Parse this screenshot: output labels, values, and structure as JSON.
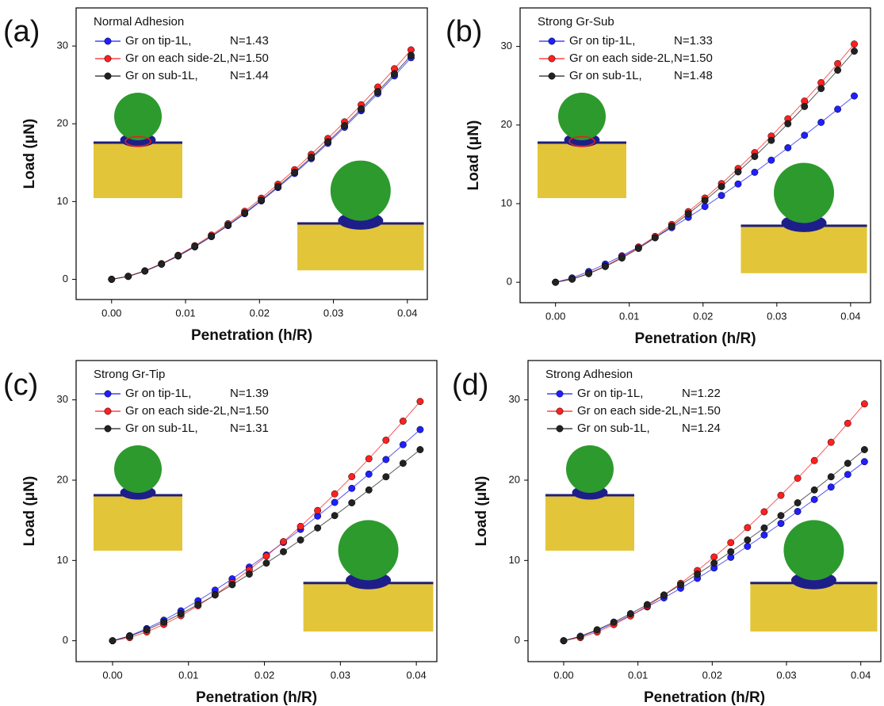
{
  "chart_data": [
    {
      "type": "line",
      "panel_label": "(a)",
      "title": "Normal Adhesion",
      "x_label": "Penetration (h/R)",
      "y_label": "Load (μN)",
      "x": [
        0,
        0.00225,
        0.0045,
        0.00675,
        0.009,
        0.01125,
        0.0135,
        0.01575,
        0.018,
        0.02025,
        0.0225,
        0.02475,
        0.027,
        0.02925,
        0.0315,
        0.03375,
        0.036,
        0.03825,
        0.0405
      ],
      "series": [
        {
          "name": "Gr on tip-1L,",
          "fit_label": "N=1.43",
          "color": "#1f1fff",
          "values": [
            0,
            0.37,
            1.05,
            1.94,
            2.99,
            4.17,
            5.49,
            6.91,
            8.44,
            10.08,
            11.8,
            13.61,
            15.51,
            17.49,
            19.55,
            21.68,
            23.89,
            26.16,
            28.5
          ]
        },
        {
          "name": "Gr on each side-2L,",
          "fit_label": "N=1.50",
          "color": "#ff2020",
          "values": [
            0,
            0.39,
            1.09,
            2.01,
            3.09,
            4.32,
            5.68,
            7.15,
            8.74,
            10.43,
            12.22,
            14.09,
            16.06,
            18.11,
            20.24,
            22.44,
            24.72,
            27.08,
            29.5
          ]
        },
        {
          "name": "Gr on sub-1L,",
          "fit_label": "N=1.44",
          "color": "#222222",
          "values": [
            0,
            0.38,
            1.07,
            1.96,
            3.02,
            4.22,
            5.54,
            6.98,
            8.53,
            10.18,
            11.93,
            13.76,
            15.68,
            17.68,
            19.76,
            21.91,
            24.14,
            26.43,
            28.8
          ]
        }
      ],
      "xlim": [
        -0.0048,
        0.0427
      ],
      "ylim": [
        -2.6,
        34.9
      ],
      "xticks": [
        {
          "value": 0,
          "label": "0.00"
        },
        0.01,
        0.02,
        0.03,
        0.04
      ],
      "yticks": [
        0,
        10,
        20,
        30
      ]
    },
    {
      "type": "line",
      "panel_label": "(b)",
      "title": "Strong Gr-Sub",
      "x_label": "Penetration (h/R)",
      "y_label": "Load (μN)",
      "x": [
        0,
        0.00225,
        0.0045,
        0.00675,
        0.009,
        0.01125,
        0.0135,
        0.01575,
        0.018,
        0.02025,
        0.0225,
        0.02475,
        0.027,
        0.02925,
        0.0315,
        0.03375,
        0.036,
        0.03825,
        0.0405
      ],
      "series": [
        {
          "name": "Gr on tip-1L,",
          "fit_label": "N=1.33",
          "color": "#1f1fff",
          "values": [
            0,
            0.55,
            1.36,
            2.31,
            3.36,
            4.48,
            5.68,
            6.95,
            8.26,
            9.63,
            11.04,
            12.5,
            13.99,
            15.53,
            17.11,
            18.7,
            20.34,
            22.01,
            23.7
          ]
        },
        {
          "name": "Gr on each side-2L,",
          "fit_label": "N=1.50",
          "color": "#ff2020",
          "values": [
            0,
            0.4,
            1.12,
            2.06,
            3.18,
            4.44,
            5.83,
            7.35,
            8.98,
            10.71,
            12.55,
            14.47,
            16.49,
            18.6,
            20.79,
            23.05,
            25.39,
            27.81,
            30.3
          ]
        },
        {
          "name": "Gr on sub-1L,",
          "fit_label": "N=1.48",
          "color": "#222222",
          "values": [
            0,
            0.39,
            1.09,
            2.0,
            3.08,
            4.3,
            5.66,
            7.13,
            8.71,
            10.4,
            12.17,
            14.04,
            16.0,
            18.05,
            20.17,
            22.36,
            24.64,
            26.98,
            29.4
          ]
        }
      ],
      "xlim": [
        -0.0048,
        0.0427
      ],
      "ylim": [
        -2.6,
        34.9
      ],
      "xticks": [
        {
          "value": 0,
          "label": "0.00"
        },
        0.01,
        0.02,
        0.03,
        0.04
      ],
      "yticks": [
        0,
        10,
        20,
        30
      ]
    },
    {
      "type": "line",
      "panel_label": "(c)",
      "title": "Strong Gr-Tip",
      "x_label": "Penetration (h/R)",
      "y_label": "Load (μN)",
      "x": [
        0,
        0.00225,
        0.0045,
        0.00675,
        0.009,
        0.01125,
        0.0135,
        0.01575,
        0.018,
        0.02025,
        0.0225,
        0.02475,
        0.027,
        0.02925,
        0.0315,
        0.03375,
        0.036,
        0.03825,
        0.0405
      ],
      "series": [
        {
          "name": "Gr on tip-1L,",
          "fit_label": "N=1.39",
          "color": "#1f1fff",
          "values": [
            0,
            0.62,
            1.51,
            2.56,
            3.72,
            4.98,
            6.3,
            7.71,
            9.17,
            10.68,
            12.25,
            13.87,
            15.53,
            17.23,
            18.98,
            20.75,
            22.57,
            24.42,
            26.3
          ]
        },
        {
          "name": "Gr on each side-2L,",
          "fit_label": "N=1.50",
          "color": "#ff2020",
          "values": [
            0,
            0.39,
            1.1,
            2.03,
            3.12,
            4.36,
            5.74,
            7.23,
            8.83,
            10.54,
            12.34,
            14.24,
            16.22,
            18.29,
            20.44,
            22.67,
            24.98,
            27.35,
            29.8
          ]
        },
        {
          "name": "Gr on sub-1L,",
          "fit_label": "N=1.31",
          "color": "#222222",
          "values": [
            0,
            0.56,
            1.37,
            2.32,
            3.37,
            4.5,
            5.7,
            6.98,
            8.3,
            9.67,
            11.09,
            12.55,
            14.05,
            15.59,
            17.18,
            18.78,
            20.42,
            22.1,
            23.8
          ]
        }
      ],
      "xlim": [
        -0.0048,
        0.0427
      ],
      "ylim": [
        -2.6,
        34.9
      ],
      "xticks": [
        {
          "value": 0,
          "label": "0.00"
        },
        0.01,
        0.02,
        0.03,
        0.04
      ],
      "yticks": [
        0,
        10,
        20,
        30
      ]
    },
    {
      "type": "line",
      "panel_label": "(d)",
      "title": "Strong Adhesion",
      "x_label": "Penetration (h/R)",
      "y_label": "Load (μN)",
      "x": [
        0,
        0.00225,
        0.0045,
        0.00675,
        0.009,
        0.01125,
        0.0135,
        0.01575,
        0.018,
        0.02025,
        0.0225,
        0.02475,
        0.027,
        0.02925,
        0.0315,
        0.03375,
        0.036,
        0.03825,
        0.0405
      ],
      "series": [
        {
          "name": "Gr on tip-1L,",
          "fit_label": "N=1.22",
          "color": "#1f1fff",
          "values": [
            0,
            0.52,
            1.28,
            2.17,
            3.16,
            4.22,
            5.34,
            6.54,
            7.77,
            9.06,
            10.39,
            11.76,
            13.17,
            14.61,
            16.1,
            17.59,
            19.14,
            20.71,
            22.3
          ]
        },
        {
          "name": "Gr on each side-2L,",
          "fit_label": "N=1.50",
          "color": "#ff2020",
          "values": [
            0,
            0.39,
            1.09,
            2.01,
            3.09,
            4.32,
            5.68,
            7.15,
            8.74,
            10.43,
            12.22,
            14.09,
            16.06,
            18.11,
            20.24,
            22.44,
            24.72,
            27.08,
            29.5
          ]
        },
        {
          "name": "Gr on sub-1L,",
          "fit_label": "N=1.24",
          "color": "#222222",
          "values": [
            0,
            0.56,
            1.37,
            2.32,
            3.37,
            4.5,
            5.7,
            6.98,
            8.3,
            9.67,
            11.09,
            12.55,
            14.05,
            15.59,
            17.18,
            18.78,
            20.42,
            22.1,
            23.8
          ]
        }
      ],
      "xlim": [
        -0.0048,
        0.0427
      ],
      "ylim": [
        -2.6,
        34.9
      ],
      "xticks": [
        {
          "value": 0,
          "label": "0.00"
        },
        0.01,
        0.02,
        0.03,
        0.04
      ],
      "yticks": [
        0,
        10,
        20,
        30
      ]
    }
  ]
}
